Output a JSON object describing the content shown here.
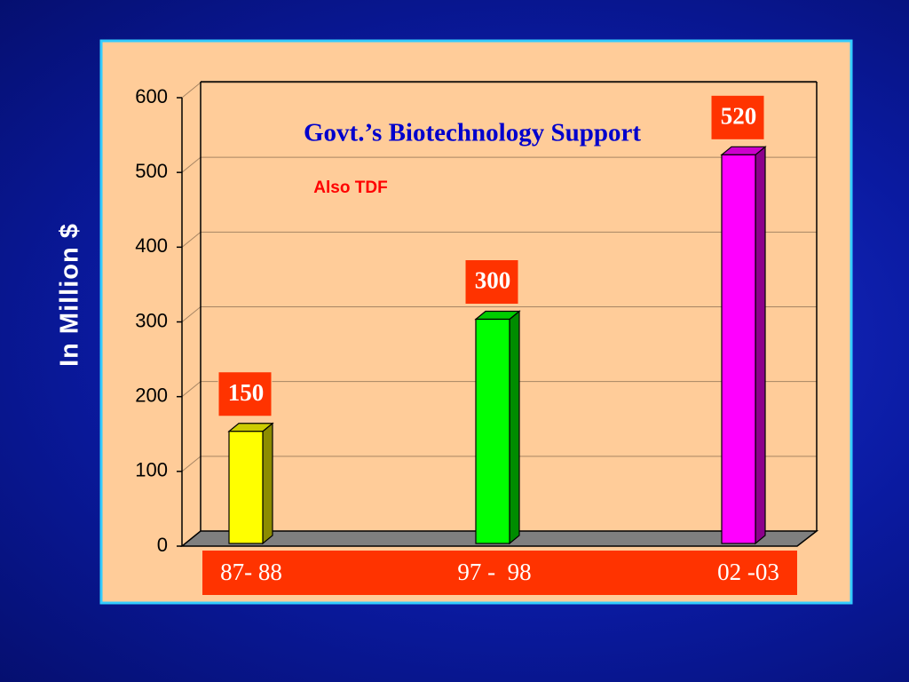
{
  "chart_data": {
    "type": "bar3d",
    "title": "Govt.’s Biotechnology Support",
    "subtitle": "Also TDF",
    "y_label": "In Million $",
    "categories": [
      "87- 88",
      "97 -  98",
      "02 -03"
    ],
    "values": [
      150,
      300,
      520
    ],
    "colors": [
      "#ffff00",
      "#00ff00",
      "#ff00ff"
    ],
    "ylim": [
      0,
      600
    ],
    "yticks": [
      0,
      100,
      200,
      300,
      400,
      500,
      600
    ],
    "grid": true
  }
}
